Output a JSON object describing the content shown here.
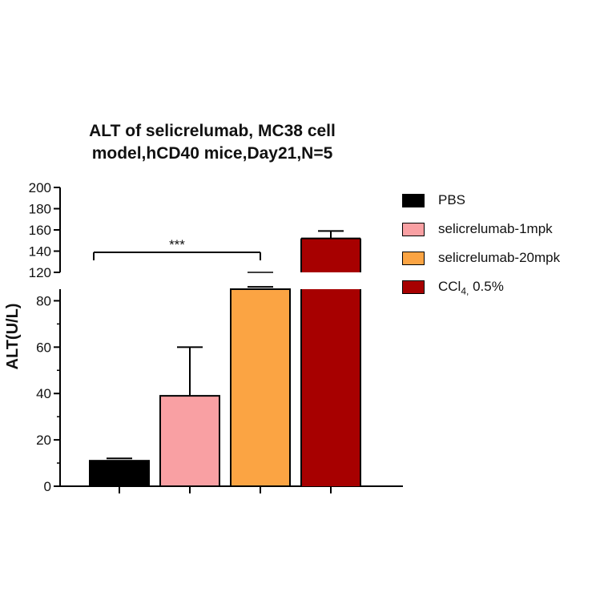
{
  "chart_data": {
    "type": "bar",
    "title": [
      "ALT of selicrelumab, MC38 cell",
      "model,hCD40 mice,Day21,N=5"
    ],
    "ylabel": "ALT(U/L)",
    "categories": [
      "PBS",
      "selicrelumab-1mpk",
      "selicrelumab-20mpk",
      "CCl4, 0.5%"
    ],
    "values": [
      11,
      39,
      85,
      152
    ],
    "error_upper": [
      12,
      60,
      86,
      159
    ],
    "colors": [
      "#000000",
      "#f9a0a3",
      "#fba443",
      "#a70000"
    ],
    "y_axis_broken": true,
    "lower_segment": {
      "ylim": [
        0,
        85
      ],
      "ticks": [
        "0",
        "20",
        "40",
        "60",
        "80"
      ],
      "tick_values": [
        0,
        20,
        40,
        60,
        80
      ]
    },
    "upper_segment": {
      "ylim": [
        120,
        200
      ],
      "ticks": [
        "120",
        "140",
        "160",
        "180",
        "200"
      ],
      "tick_values": [
        120,
        140,
        160,
        180,
        200
      ]
    },
    "significance": {
      "label": "***",
      "from_category": "PBS",
      "to_category": "selicrelumab-20mpk"
    },
    "legend": [
      {
        "label_main": "CCl",
        "label_sub": "4,",
        "label_tail": " 0.5%"
      }
    ]
  },
  "legend_items": [
    {
      "label": "PBS"
    },
    {
      "label": "selicrelumab-1mpk"
    },
    {
      "label": "selicrelumab-20mpk"
    }
  ],
  "legend_ccl": {
    "main": "CCl",
    "sub": "4,",
    "tail": " 0.5%"
  }
}
